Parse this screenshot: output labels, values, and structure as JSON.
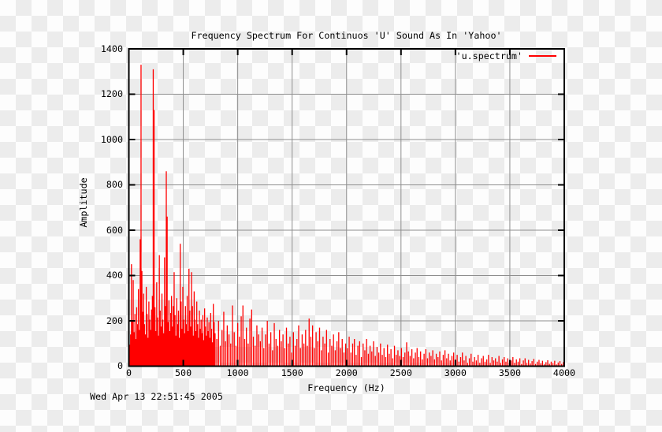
{
  "timestamp": "Wed Apr 13 22:51:45 2005",
  "colors": {
    "series": "#ff0000",
    "grid": "#8e8e8e",
    "border": "#000000",
    "text": "#000000",
    "checker_light": "#fdfdfd",
    "checker_dark": "#ececec"
  },
  "chart_data": {
    "type": "line",
    "style": "impulses",
    "title": "Frequency Spectrum For Continuos 'U' Sound As In 'Yahoo'",
    "xlabel": "Frequency (Hz)",
    "ylabel": "Amplitude",
    "xlim": [
      0,
      4000
    ],
    "ylim": [
      0,
      1400
    ],
    "xticks": [
      0,
      500,
      1000,
      1500,
      2000,
      2500,
      3000,
      3500,
      4000
    ],
    "yticks": [
      0,
      200,
      400,
      600,
      800,
      1000,
      1200,
      1400
    ],
    "grid": true,
    "legend_position": "top-right-inside",
    "notable_peaks": [
      {
        "hz": 112,
        "amplitude": 1330
      },
      {
        "hz": 224,
        "amplitude": 1310
      },
      {
        "hz": 344,
        "amplitude": 860
      },
      {
        "hz": 472,
        "amplitude": 540
      },
      {
        "hz": 280,
        "amplitude": 490
      },
      {
        "hz": 552,
        "amplitude": 430
      }
    ],
    "series": [
      {
        "name": "'u.spectrum'",
        "color": "#ff0000",
        "points": [
          [
            0,
            20
          ],
          [
            8,
            95
          ],
          [
            16,
            140
          ],
          [
            24,
            450
          ],
          [
            32,
            200
          ],
          [
            40,
            380
          ],
          [
            48,
            150
          ],
          [
            56,
            230
          ],
          [
            64,
            120
          ],
          [
            72,
            260
          ],
          [
            80,
            185
          ],
          [
            88,
            340
          ],
          [
            96,
            160
          ],
          [
            104,
            560
          ],
          [
            112,
            1330
          ],
          [
            120,
            420
          ],
          [
            128,
            240
          ],
          [
            136,
            320
          ],
          [
            144,
            185
          ],
          [
            152,
            140
          ],
          [
            160,
            350
          ],
          [
            168,
            230
          ],
          [
            176,
            125
          ],
          [
            184,
            285
          ],
          [
            192,
            205
          ],
          [
            200,
            160
          ],
          [
            208,
            250
          ],
          [
            216,
            310
          ],
          [
            224,
            1310
          ],
          [
            232,
            1130
          ],
          [
            240,
            260
          ],
          [
            248,
            155
          ],
          [
            256,
            370
          ],
          [
            264,
            215
          ],
          [
            272,
            135
          ],
          [
            280,
            490
          ],
          [
            288,
            245
          ],
          [
            296,
            175
          ],
          [
            304,
            320
          ],
          [
            312,
            205
          ],
          [
            320,
            145
          ],
          [
            328,
            480
          ],
          [
            336,
            265
          ],
          [
            344,
            860
          ],
          [
            352,
            660
          ],
          [
            360,
            195
          ],
          [
            368,
            290
          ],
          [
            376,
            155
          ],
          [
            384,
            235
          ],
          [
            392,
            310
          ],
          [
            400,
            175
          ],
          [
            408,
            265
          ],
          [
            416,
            415
          ],
          [
            424,
            225
          ],
          [
            432,
            135
          ],
          [
            440,
            300
          ],
          [
            448,
            185
          ],
          [
            456,
            245
          ],
          [
            464,
            125
          ],
          [
            472,
            540
          ],
          [
            480,
            285
          ],
          [
            488,
            165
          ],
          [
            496,
            350
          ],
          [
            504,
            205
          ],
          [
            512,
            145
          ],
          [
            520,
            265
          ],
          [
            528,
            185
          ],
          [
            536,
            310
          ],
          [
            544,
            155
          ],
          [
            552,
            430
          ],
          [
            560,
            245
          ],
          [
            568,
            175
          ],
          [
            576,
            415
          ],
          [
            584,
            265
          ],
          [
            592,
            135
          ],
          [
            600,
            330
          ],
          [
            608,
            205
          ],
          [
            616,
            155
          ],
          [
            624,
            285
          ],
          [
            632,
            185
          ],
          [
            640,
            125
          ],
          [
            648,
            245
          ],
          [
            656,
            165
          ],
          [
            664,
            205
          ],
          [
            672,
            145
          ],
          [
            680,
            225
          ],
          [
            688,
            115
          ],
          [
            696,
            255
          ],
          [
            704,
            175
          ],
          [
            712,
            135
          ],
          [
            720,
            215
          ],
          [
            728,
            155
          ],
          [
            736,
            195
          ],
          [
            744,
            125
          ],
          [
            752,
            235
          ],
          [
            760,
            165
          ],
          [
            768,
            105
          ],
          [
            776,
            275
          ],
          [
            784,
            195
          ],
          [
            792,
            145
          ],
          [
            808,
            120
          ],
          [
            824,
            200
          ],
          [
            840,
            90
          ],
          [
            856,
            160
          ],
          [
            872,
            240
          ],
          [
            888,
            110
          ],
          [
            904,
            180
          ],
          [
            920,
            140
          ],
          [
            936,
            100
          ],
          [
            952,
            268
          ],
          [
            968,
            150
          ],
          [
            984,
            90
          ],
          [
            1000,
            190
          ],
          [
            1016,
            130
          ],
          [
            1032,
            220
          ],
          [
            1048,
            268
          ],
          [
            1064,
            120
          ],
          [
            1080,
            170
          ],
          [
            1096,
            100
          ],
          [
            1112,
            210
          ],
          [
            1128,
            250
          ],
          [
            1144,
            130
          ],
          [
            1160,
            90
          ],
          [
            1176,
            180
          ],
          [
            1192,
            140
          ],
          [
            1208,
            110
          ],
          [
            1224,
            170
          ],
          [
            1240,
            80
          ],
          [
            1256,
            140
          ],
          [
            1272,
            200
          ],
          [
            1288,
            100
          ],
          [
            1304,
            150
          ],
          [
            1320,
            70
          ],
          [
            1336,
            190
          ],
          [
            1352,
            120
          ],
          [
            1368,
            90
          ],
          [
            1384,
            160
          ],
          [
            1400,
            110
          ],
          [
            1416,
            140
          ],
          [
            1432,
            80
          ],
          [
            1448,
            170
          ],
          [
            1464,
            100
          ],
          [
            1480,
            130
          ],
          [
            1496,
            60
          ],
          [
            1512,
            150
          ],
          [
            1528,
            90
          ],
          [
            1544,
            120
          ],
          [
            1560,
            180
          ],
          [
            1576,
            80
          ],
          [
            1592,
            140
          ],
          [
            1608,
            100
          ],
          [
            1624,
            160
          ],
          [
            1640,
            90
          ],
          [
            1656,
            210
          ],
          [
            1672,
            130
          ],
          [
            1688,
            180
          ],
          [
            1704,
            80
          ],
          [
            1720,
            150
          ],
          [
            1736,
            110
          ],
          [
            1752,
            170
          ],
          [
            1768,
            70
          ],
          [
            1784,
            130
          ],
          [
            1800,
            100
          ],
          [
            1816,
            160
          ],
          [
            1832,
            60
          ],
          [
            1848,
            120
          ],
          [
            1864,
            90
          ],
          [
            1880,
            140
          ],
          [
            1896,
            70
          ],
          [
            1912,
            110
          ],
          [
            1928,
            150
          ],
          [
            1944,
            80
          ],
          [
            1960,
            120
          ],
          [
            1976,
            60
          ],
          [
            1992,
            100
          ],
          [
            2008,
            80
          ],
          [
            2024,
            130
          ],
          [
            2040,
            60
          ],
          [
            2056,
            100
          ],
          [
            2072,
            120
          ],
          [
            2088,
            50
          ],
          [
            2104,
            90
          ],
          [
            2120,
            110
          ],
          [
            2136,
            40
          ],
          [
            2152,
            100
          ],
          [
            2168,
            70
          ],
          [
            2184,
            120
          ],
          [
            2200,
            55
          ],
          [
            2216,
            90
          ],
          [
            2232,
            65
          ],
          [
            2248,
            110
          ],
          [
            2264,
            45
          ],
          [
            2280,
            85
          ],
          [
            2296,
            60
          ],
          [
            2312,
            100
          ],
          [
            2328,
            50
          ],
          [
            2344,
            80
          ],
          [
            2360,
            40
          ],
          [
            2376,
            95
          ],
          [
            2392,
            55
          ],
          [
            2408,
            75
          ],
          [
            2424,
            35
          ],
          [
            2440,
            90
          ],
          [
            2456,
            50
          ],
          [
            2472,
            70
          ],
          [
            2488,
            45
          ],
          [
            2504,
            80
          ],
          [
            2520,
            40
          ],
          [
            2536,
            60
          ],
          [
            2552,
            105
          ],
          [
            2568,
            65
          ],
          [
            2584,
            45
          ],
          [
            2600,
            75
          ],
          [
            2616,
            35
          ],
          [
            2632,
            60
          ],
          [
            2648,
            80
          ],
          [
            2664,
            40
          ],
          [
            2680,
            65
          ],
          [
            2696,
            30
          ],
          [
            2712,
            55
          ],
          [
            2728,
            75
          ],
          [
            2744,
            35
          ],
          [
            2760,
            60
          ],
          [
            2776,
            45
          ],
          [
            2792,
            70
          ],
          [
            2808,
            30
          ],
          [
            2824,
            55
          ],
          [
            2840,
            40
          ],
          [
            2856,
            65
          ],
          [
            2872,
            25
          ],
          [
            2888,
            50
          ],
          [
            2904,
            70
          ],
          [
            2920,
            35
          ],
          [
            2936,
            55
          ],
          [
            2952,
            25
          ],
          [
            2968,
            45
          ],
          [
            2984,
            60
          ],
          [
            3000,
            30
          ],
          [
            3016,
            50
          ],
          [
            3032,
            20
          ],
          [
            3048,
            40
          ],
          [
            3064,
            60
          ],
          [
            3080,
            25
          ],
          [
            3096,
            45
          ],
          [
            3112,
            15
          ],
          [
            3128,
            35
          ],
          [
            3144,
            55
          ],
          [
            3160,
            20
          ],
          [
            3176,
            40
          ],
          [
            3192,
            25
          ],
          [
            3208,
            50
          ],
          [
            3224,
            15
          ],
          [
            3240,
            35
          ],
          [
            3256,
            45
          ],
          [
            3272,
            20
          ],
          [
            3288,
            30
          ],
          [
            3304,
            50
          ],
          [
            3320,
            15
          ],
          [
            3336,
            40
          ],
          [
            3352,
            25
          ],
          [
            3368,
            35
          ],
          [
            3384,
            20
          ],
          [
            3400,
            45
          ],
          [
            3416,
            15
          ],
          [
            3432,
            30
          ],
          [
            3448,
            40
          ],
          [
            3464,
            20
          ],
          [
            3480,
            35
          ],
          [
            3496,
            15
          ],
          [
            3512,
            25
          ],
          [
            3528,
            40
          ],
          [
            3544,
            15
          ],
          [
            3560,
            30
          ],
          [
            3576,
            20
          ],
          [
            3592,
            35
          ],
          [
            3608,
            10
          ],
          [
            3624,
            25
          ],
          [
            3640,
            35
          ],
          [
            3656,
            15
          ],
          [
            3672,
            28
          ],
          [
            3688,
            12
          ],
          [
            3704,
            22
          ],
          [
            3720,
            32
          ],
          [
            3736,
            10
          ],
          [
            3752,
            20
          ],
          [
            3768,
            28
          ],
          [
            3784,
            12
          ],
          [
            3800,
            24
          ],
          [
            3816,
            8
          ],
          [
            3832,
            18
          ],
          [
            3848,
            26
          ],
          [
            3864,
            10
          ],
          [
            3880,
            20
          ],
          [
            3896,
            14
          ],
          [
            3912,
            24
          ],
          [
            3928,
            8
          ],
          [
            3944,
            16
          ],
          [
            3960,
            22
          ],
          [
            3976,
            10
          ],
          [
            3992,
            18
          ]
        ]
      }
    ]
  }
}
